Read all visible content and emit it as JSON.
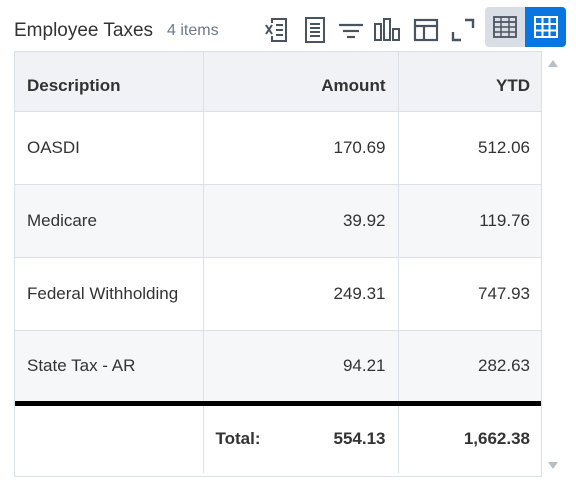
{
  "header": {
    "title": "Employee Taxes",
    "count": "4 items"
  },
  "toolbar": {
    "icons": [
      "export-excel-icon",
      "export-pdf-icon",
      "filter-icon",
      "chart-icon",
      "column-layout-icon",
      "fullscreen-icon"
    ],
    "view_modes": [
      "table-view-icon",
      "grid-view-icon"
    ],
    "active_view": "grid-view-icon",
    "accent_color": "#0875e1"
  },
  "table": {
    "columns": [
      "Description",
      "Amount",
      "YTD"
    ],
    "rows": [
      {
        "description": "OASDI",
        "amount": "170.69",
        "ytd": "512.06"
      },
      {
        "description": "Medicare",
        "amount": "39.92",
        "ytd": "119.76"
      },
      {
        "description": "Federal Withholding",
        "amount": "249.31",
        "ytd": "747.93"
      },
      {
        "description": "State Tax - AR",
        "amount": "94.21",
        "ytd": "282.63"
      }
    ],
    "total": {
      "label": "Total:",
      "amount": "554.13",
      "ytd": "1,662.38"
    }
  }
}
